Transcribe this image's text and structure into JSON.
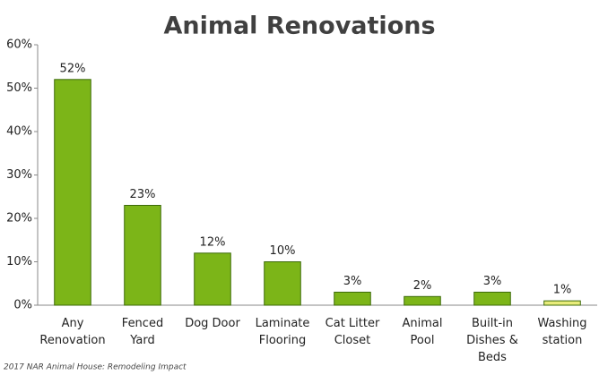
{
  "chart_data": {
    "type": "bar",
    "title": "Animal Renovations",
    "categories": [
      "Any\nRenovation",
      "Fenced\nYard",
      "Dog Door",
      "Laminate\nFlooring",
      "Cat Litter\nCloset",
      "Animal\nPool",
      "Built-in\nDishes &\nBeds",
      "Washing\nstation"
    ],
    "values": [
      52,
      23,
      12,
      10,
      3,
      2,
      3,
      1
    ],
    "value_labels": [
      "52%",
      "23%",
      "12%",
      "10%",
      "3%",
      "2%",
      "3%",
      "1%"
    ],
    "colors": [
      "#7cb518",
      "#7cb518",
      "#7cb518",
      "#7cb518",
      "#7cb518",
      "#7cb518",
      "#7cb518",
      "#e8ec7a"
    ],
    "ylim": [
      0,
      60
    ],
    "yticks": [
      {
        "value": 0,
        "label": "0%"
      },
      {
        "value": 10,
        "label": "10%"
      },
      {
        "value": 20,
        "label": "20%"
      },
      {
        "value": 30,
        "label": "30%"
      },
      {
        "value": 40,
        "label": "40%"
      },
      {
        "value": 50,
        "label": "50%"
      },
      {
        "value": 60,
        "label": "60%"
      }
    ],
    "grid": false,
    "source": "2017 NAR Animal House: Remodeling Impact"
  }
}
